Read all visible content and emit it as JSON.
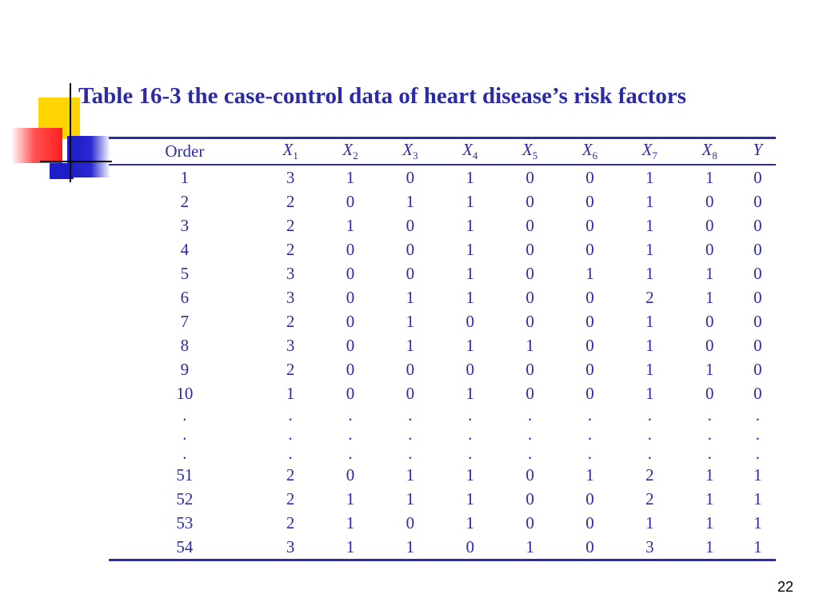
{
  "slide": {
    "title": "Table 16-3  the case-control data of heart disease’s risk factors",
    "page_number": "22"
  },
  "table": {
    "header": {
      "order": "Order",
      "vars": [
        {
          "base": "X",
          "sub": "1"
        },
        {
          "base": "X",
          "sub": "2"
        },
        {
          "base": "X",
          "sub": "3"
        },
        {
          "base": "X",
          "sub": "4"
        },
        {
          "base": "X",
          "sub": "5"
        },
        {
          "base": "X",
          "sub": "6"
        },
        {
          "base": "X",
          "sub": "7"
        },
        {
          "base": "X",
          "sub": "8"
        },
        {
          "base": "Y",
          "sub": ""
        }
      ]
    },
    "rows": [
      [
        "1",
        "3",
        "1",
        "0",
        "1",
        "0",
        "0",
        "1",
        "1",
        "0"
      ],
      [
        "2",
        "2",
        "0",
        "1",
        "1",
        "0",
        "0",
        "1",
        "0",
        "0"
      ],
      [
        "3",
        "2",
        "1",
        "0",
        "1",
        "0",
        "0",
        "1",
        "0",
        "0"
      ],
      [
        "4",
        "2",
        "0",
        "0",
        "1",
        "0",
        "0",
        "1",
        "0",
        "0"
      ],
      [
        "5",
        "3",
        "0",
        "0",
        "1",
        "0",
        "1",
        "1",
        "1",
        "0"
      ],
      [
        "6",
        "3",
        "0",
        "1",
        "1",
        "0",
        "0",
        "2",
        "1",
        "0"
      ],
      [
        "7",
        "2",
        "0",
        "1",
        "0",
        "0",
        "0",
        "1",
        "0",
        "0"
      ],
      [
        "8",
        "3",
        "0",
        "1",
        "1",
        "1",
        "0",
        "1",
        "0",
        "0"
      ],
      [
        "9",
        "2",
        "0",
        "0",
        "0",
        "0",
        "0",
        "1",
        "1",
        "0"
      ],
      [
        "10",
        "1",
        "0",
        "0",
        "1",
        "0",
        "0",
        "1",
        "0",
        "0"
      ],
      [
        ".",
        ".",
        ".",
        ".",
        ".",
        ".",
        ".",
        ".",
        ".",
        "."
      ],
      [
        ".",
        ".",
        ".",
        ".",
        ".",
        ".",
        ".",
        ".",
        ".",
        "."
      ],
      [
        ".",
        ".",
        ".",
        ".",
        ".",
        ".",
        ".",
        ".",
        ".",
        "."
      ],
      [
        "51",
        "2",
        "0",
        "1",
        "1",
        "0",
        "1",
        "2",
        "1",
        "1"
      ],
      [
        "52",
        "2",
        "1",
        "1",
        "1",
        "0",
        "0",
        "2",
        "1",
        "1"
      ],
      [
        "53",
        "2",
        "1",
        "0",
        "1",
        "0",
        "0",
        "1",
        "1",
        "1"
      ],
      [
        "54",
        "3",
        "1",
        "1",
        "0",
        "1",
        "0",
        "3",
        "1",
        "1"
      ]
    ]
  },
  "colors": {
    "text_accent": "#2B2BA6",
    "deco_yellow": "#FFD400",
    "deco_red": "#FF2020",
    "deco_blue": "#1E1EC8"
  }
}
